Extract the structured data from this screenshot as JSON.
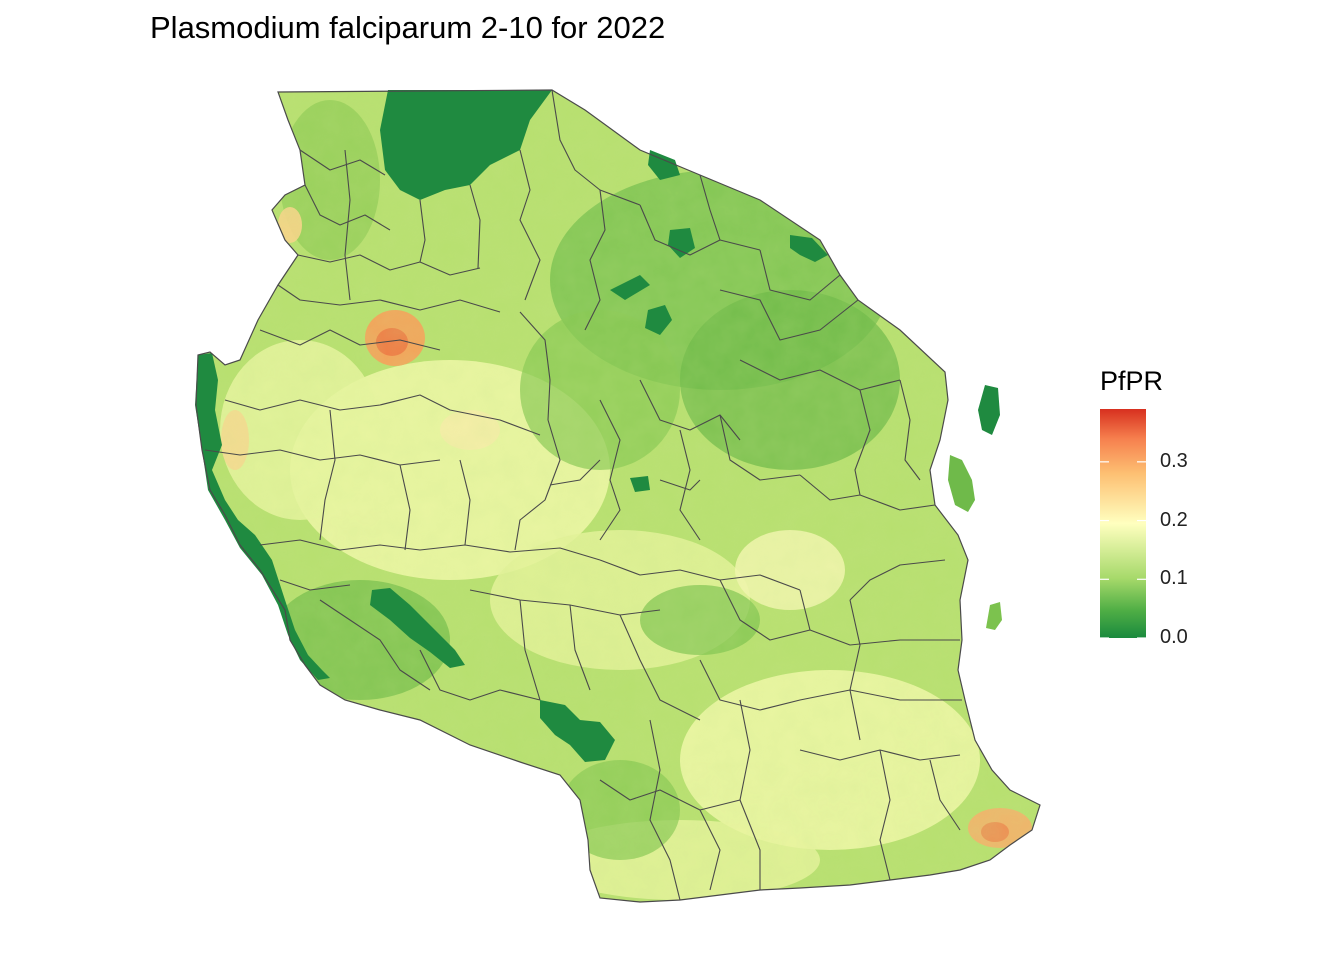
{
  "title": "Plasmodium falciparum 2-10 for 2022",
  "legend": {
    "title": "PfPR",
    "ticks": [
      "0.0",
      "0.1",
      "0.2",
      "0.3"
    ],
    "tick_values": [
      0.0,
      0.1,
      0.2,
      0.3
    ],
    "range": [
      0.0,
      0.39
    ],
    "colors": [
      "#1a8a3e",
      "#6cbf4a",
      "#c9e87a",
      "#ffffbf",
      "#fdd17e",
      "#f78950",
      "#d7301f"
    ]
  },
  "map_colors": {
    "low": "#1a8a3e",
    "mid_low": "#91cc5a",
    "mid": "#dcef8f",
    "pale": "#f6f8b4",
    "orange": "#f5a05a",
    "red": "#d94830",
    "border": "#4a4a4a"
  }
}
